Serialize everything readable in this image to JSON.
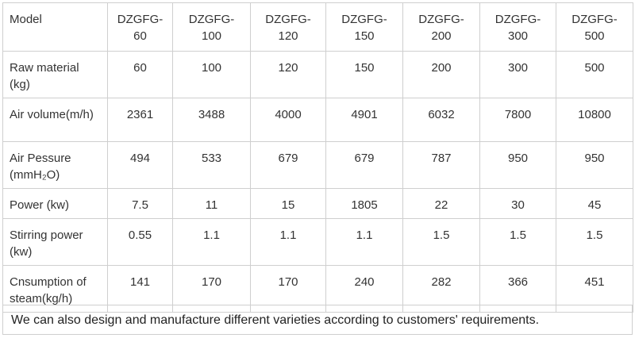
{
  "table": {
    "rows": [
      [
        "Model",
        "DZGFG-60",
        "DZGFG-100",
        "DZGFG-120",
        "DZGFG-150",
        "DZGFG-200",
        "DZGFG-300",
        "DZGFG-500"
      ],
      [
        "Raw material (kg)",
        "60",
        "100",
        "120",
        "150",
        "200",
        "300",
        "500"
      ],
      [
        "Air volume(m/h)",
        "2361",
        "3488",
        "4000",
        "4901",
        "6032",
        "7800",
        "10800"
      ],
      [
        "Air Pessure (mmH₂O)",
        "494",
        "533",
        "679",
        "679",
        "787",
        "950",
        "950"
      ],
      [
        "Power (kw)",
        "7.5",
        "11",
        "15",
        "1805",
        "22",
        "30",
        "45"
      ],
      [
        "Stirring power (kw)",
        "0.55",
        "1.1",
        "1.1",
        "1.1",
        "1.5",
        "1.5",
        "1.5"
      ],
      [
        "Cnsumption of steam(kg/h)",
        "141",
        "170",
        "170",
        "240",
        "282",
        "366",
        "451"
      ]
    ]
  },
  "note": "We can also design and manufacture different varieties according to customers' requirements."
}
